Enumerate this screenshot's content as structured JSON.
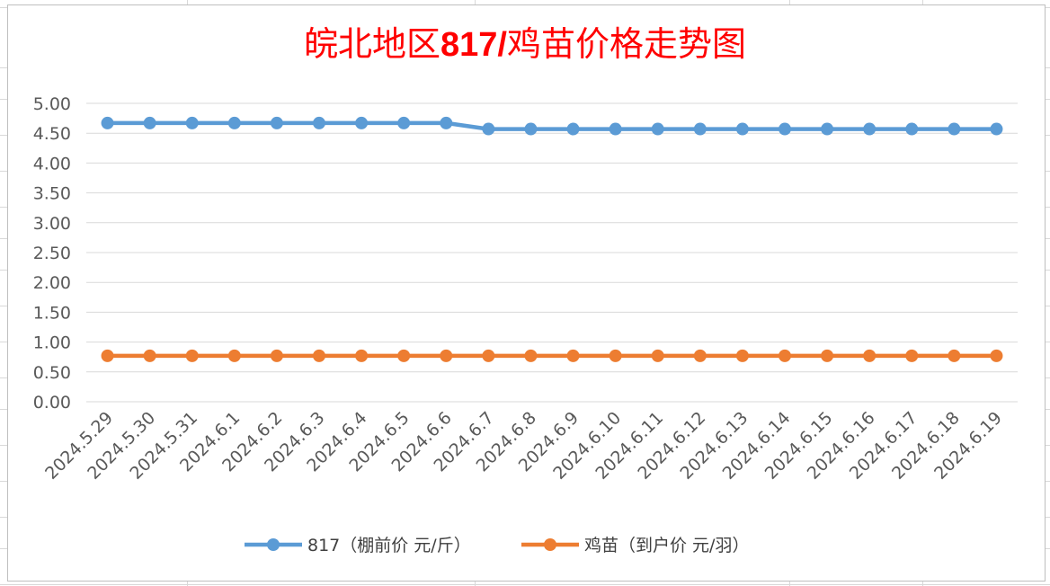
{
  "chart_data": {
    "type": "line",
    "title": {
      "prefix": "皖北地区",
      "code": "817/",
      "suffix": "鸡苗价格走势图"
    },
    "x": [
      "2024.5.29",
      "2024.5.30",
      "2024.5.31",
      "2024.6.1",
      "2024.6.2",
      "2024.6.3",
      "2024.6.4",
      "2024.6.5",
      "2024.6.6",
      "2024.6.7",
      "2024.6.8",
      "2024.6.9",
      "2024.6.10",
      "2024.6.11",
      "2024.6.12",
      "2024.6.13",
      "2024.6.14",
      "2024.6.15",
      "2024.6.16",
      "2024.6.17",
      "2024.6.18",
      "2024.6.19"
    ],
    "yticks": [
      "0.00",
      "0.50",
      "1.00",
      "1.50",
      "2.00",
      "2.50",
      "3.00",
      "3.50",
      "4.00",
      "4.50",
      "5.00"
    ],
    "ylim": [
      0,
      5
    ],
    "grid": true,
    "legend_position": "bottom",
    "series": [
      {
        "name": "817（棚前价 元/斤）",
        "color": "#5b9bd5",
        "values": [
          4.67,
          4.67,
          4.67,
          4.67,
          4.67,
          4.67,
          4.67,
          4.67,
          4.67,
          4.57,
          4.57,
          4.57,
          4.57,
          4.57,
          4.57,
          4.57,
          4.57,
          4.57,
          4.57,
          4.57,
          4.57,
          4.57
        ]
      },
      {
        "name": "鸡苗（到户价 元/羽）",
        "color": "#ed7d31",
        "values": [
          0.77,
          0.77,
          0.77,
          0.77,
          0.77,
          0.77,
          0.77,
          0.77,
          0.77,
          0.77,
          0.77,
          0.77,
          0.77,
          0.77,
          0.77,
          0.77,
          0.77,
          0.77,
          0.77,
          0.77,
          0.77,
          0.77
        ]
      }
    ]
  }
}
